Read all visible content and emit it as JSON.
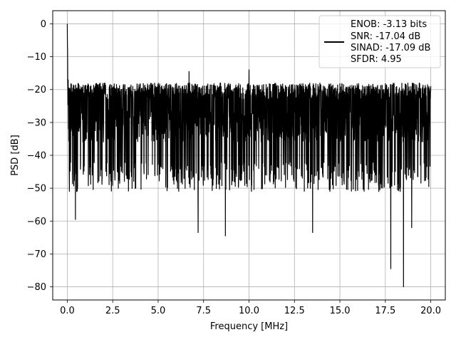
{
  "chart_data": {
    "type": "line",
    "title": "",
    "xlabel": "Frequency [MHz]",
    "ylabel": "PSD [dB]",
    "xlim": [
      -0.8,
      20.8
    ],
    "ylim": [
      -84,
      4
    ],
    "xticks": [
      0.0,
      2.5,
      5.0,
      7.5,
      10.0,
      12.5,
      15.0,
      17.5,
      20.0
    ],
    "xtick_labels": [
      "0.0",
      "2.5",
      "5.0",
      "7.5",
      "10.0",
      "12.5",
      "15.0",
      "17.5",
      "20.0"
    ],
    "yticks": [
      0,
      -10,
      -20,
      -30,
      -40,
      -50,
      -60,
      -70,
      -80
    ],
    "ytick_labels": [
      "0",
      "−10",
      "−20",
      "−30",
      "−40",
      "−50",
      "−60",
      "−70",
      "−80"
    ],
    "grid": true,
    "line_color": "#000000",
    "legend": {
      "position": "upper right",
      "entries": [
        "ENOB: -3.13 bits",
        "SNR: -17.04 dB",
        "SINAD: -17.09 dB",
        "SFDR: 4.95"
      ]
    },
    "series": [
      {
        "x_start": 0.0,
        "x_end": 20.0,
        "peak": {
          "x": 0.0,
          "y": 0.0
        },
        "noise_floor_mean": -30,
        "noise_upper_envelope": -20,
        "noise_lower_envelope": -45,
        "notable_dips": [
          {
            "x": 0.45,
            "y": -59.5
          },
          {
            "x": 7.2,
            "y": -63.5
          },
          {
            "x": 8.7,
            "y": -64.5
          },
          {
            "x": 13.5,
            "y": -63.5
          },
          {
            "x": 17.8,
            "y": -74.5
          },
          {
            "x": 18.5,
            "y": -80.0
          },
          {
            "x": 18.95,
            "y": -62.0
          }
        ],
        "notable_peaks": [
          {
            "x": 6.7,
            "y": -14.5
          },
          {
            "x": 10.0,
            "y": -14.0
          }
        ]
      }
    ]
  }
}
